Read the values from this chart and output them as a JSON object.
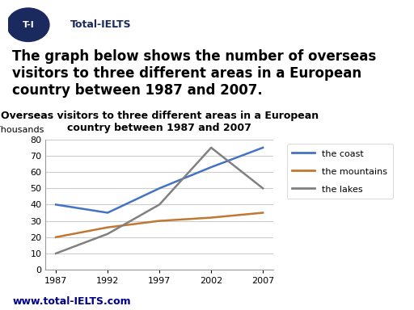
{
  "title": "Overseas visitors to three different areas in a European\ncountry between 1987 and 2007",
  "ylabel": "Thousands",
  "years": [
    1987,
    1992,
    1997,
    2002,
    2007
  ],
  "coast": [
    40,
    35,
    50,
    63,
    75
  ],
  "mountains": [
    20,
    26,
    30,
    32,
    35
  ],
  "lakes": [
    10,
    22,
    40,
    75,
    50
  ],
  "coast_color": "#4472C4",
  "mountains_color": "#C07830",
  "lakes_color": "#808080",
  "ylim": [
    0,
    80
  ],
  "yticks": [
    0,
    10,
    20,
    30,
    40,
    50,
    60,
    70,
    80
  ],
  "xticks": [
    1987,
    1992,
    1997,
    2002,
    2007
  ],
  "legend_labels": [
    "the coast",
    "the mountains",
    "the lakes"
  ],
  "background_color": "#ffffff",
  "grid_color": "#cccccc",
  "title_fontsize": 9,
  "watermark": "www.total-IELTS.com",
  "logo_text": "T-I",
  "logo_subtext": "Total-IELTS",
  "logo_color": "#1a2a5e",
  "header_text": "The graph below shows the number of overseas\nvisitors to three different areas in a European\ncountry between 1987 and 2007.",
  "header_fontsize": 12,
  "watermark_color": "#00008B",
  "watermark_fontsize": 9
}
